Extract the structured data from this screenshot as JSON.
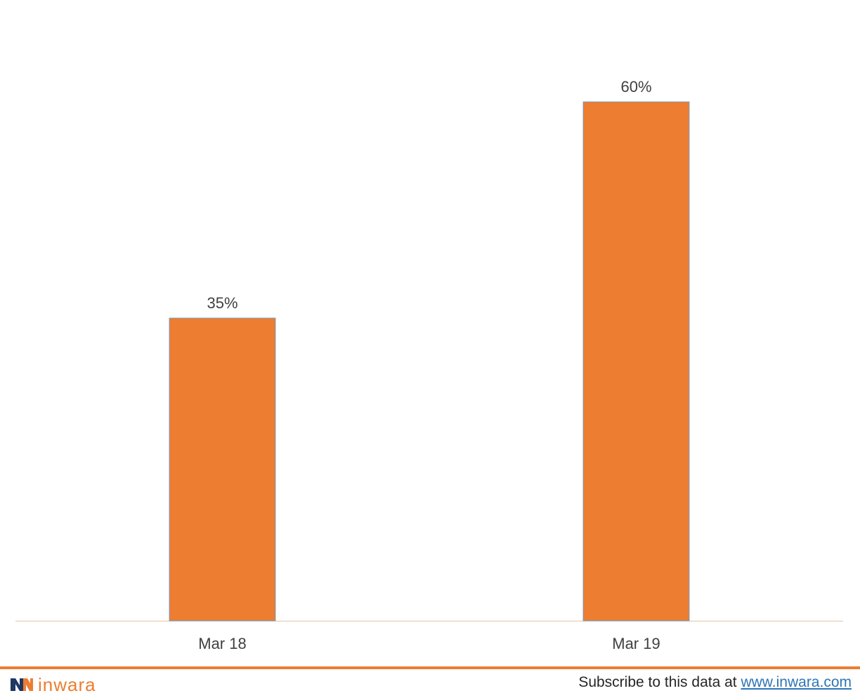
{
  "chart_data": {
    "type": "bar",
    "categories": [
      "Mar 18",
      "Mar 19"
    ],
    "values": [
      35,
      60
    ],
    "data_labels": [
      "35%",
      "60%"
    ],
    "title": "",
    "xlabel": "",
    "ylabel": "",
    "ylim": [
      0,
      60
    ],
    "grid": false,
    "legend": "none",
    "bar_color": "#ED7D31",
    "bar_edge_color": "#5B9BD5"
  },
  "footer": {
    "brand": "inwara",
    "brand_color": "#ED7D31",
    "subscribe_text": "Subscribe to this data at ",
    "subscribe_link": "www.inwara.com",
    "link_color": "#2E75B6",
    "rule_color": "#ED7D31"
  }
}
